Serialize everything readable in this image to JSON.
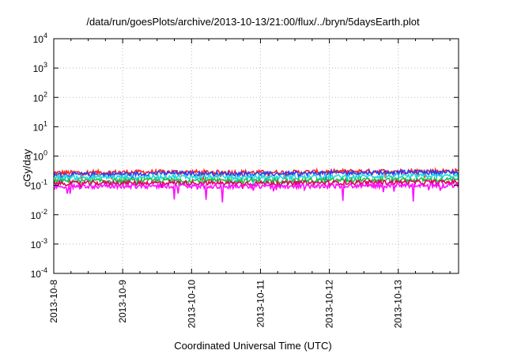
{
  "chart_data": {
    "type": "line",
    "title": "/data/run/goesPlots/archive/2013-10-13/21:00/flux/../bryn/5daysEarth.plot",
    "xlabel": "Coordinated Universal Time (UTC)",
    "ylabel": "cGy/day",
    "yscale": "log",
    "ylim": [
      0.0001,
      10000
    ],
    "xlim": [
      "2013-10-08",
      "2013-10-13 21:00"
    ],
    "x_ticks": [
      "2013-10-8",
      "2013-10-9",
      "2013-10-10",
      "2013-10-11",
      "2013-10-12",
      "2013-10-13"
    ],
    "y_ticks": [
      {
        "base": "10",
        "exp": "-4"
      },
      {
        "base": "10",
        "exp": "-3"
      },
      {
        "base": "10",
        "exp": "-2"
      },
      {
        "base": "10",
        "exp": "-1"
      },
      {
        "base": "10",
        "exp": "0"
      },
      {
        "base": "10",
        "exp": "1"
      },
      {
        "base": "10",
        "exp": "2"
      },
      {
        "base": "10",
        "exp": "3"
      },
      {
        "base": "10",
        "exp": "4"
      }
    ],
    "grid": true,
    "legend": "none",
    "series": [
      {
        "color": "#ff2020",
        "values": [
          0.27,
          0.28,
          0.29,
          0.28,
          0.28,
          0.3,
          0.31,
          0.31
        ]
      },
      {
        "color": "#2e3ff0",
        "values": [
          0.23,
          0.24,
          0.26,
          0.25,
          0.25,
          0.27,
          0.28,
          0.28
        ]
      },
      {
        "color": "#20d8e0",
        "values": [
          0.19,
          0.19,
          0.2,
          0.19,
          0.19,
          0.2,
          0.21,
          0.21
        ]
      },
      {
        "color": "#20c040",
        "values": [
          0.14,
          0.145,
          0.15,
          0.145,
          0.145,
          0.15,
          0.155,
          0.155
        ]
      },
      {
        "color": "#e00060",
        "values": [
          0.118,
          0.12,
          0.123,
          0.12,
          0.12,
          0.125,
          0.128,
          0.128
        ]
      },
      {
        "color": "#ff10ff",
        "values": [
          0.092,
          0.094,
          0.097,
          0.094,
          0.094,
          0.098,
          0.1,
          0.1
        ]
      }
    ]
  }
}
